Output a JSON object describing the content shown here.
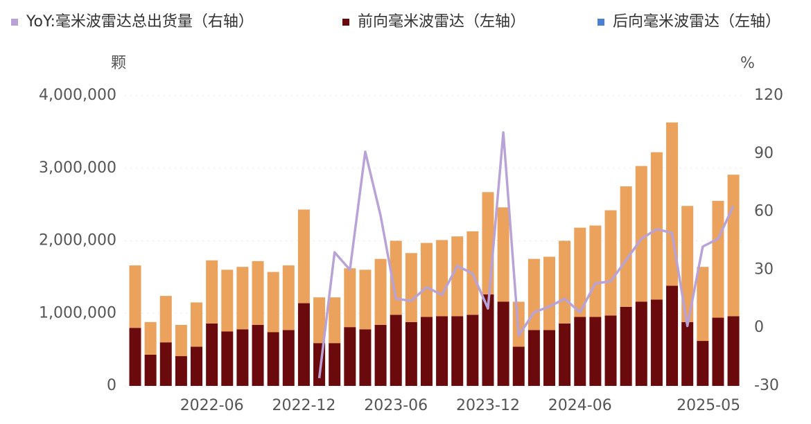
{
  "chart_data": {
    "type": "bar",
    "stacked": true,
    "y_unit": "颗",
    "y2_unit": "%",
    "categories": [
      null,
      null,
      null,
      null,
      null,
      "2022-06",
      null,
      null,
      null,
      null,
      null,
      "2022-12",
      null,
      null,
      null,
      null,
      null,
      "2023-06",
      null,
      null,
      null,
      null,
      null,
      "2023-12",
      null,
      null,
      null,
      null,
      null,
      "2024-06",
      null,
      null,
      null,
      null,
      null,
      null,
      null,
      null,
      null,
      "2025-05"
    ],
    "series": [
      {
        "name": "YoY:毫米波雷达总出货量（右轴）",
        "type": "line",
        "axis": "y2",
        "color": "#b9a3d6",
        "values": [
          null,
          null,
          null,
          null,
          null,
          null,
          null,
          null,
          null,
          null,
          null,
          null,
          -26,
          39,
          30,
          91,
          58,
          15,
          14,
          21,
          17,
          32,
          28,
          10,
          101,
          -4,
          8,
          11,
          15,
          8,
          23,
          24,
          35,
          46,
          51,
          49,
          1,
          42,
          46,
          63
        ]
      },
      {
        "name": "前向毫米波雷达（左轴）",
        "type": "bar",
        "color": "#6b0a0c",
        "values": [
          800000,
          430000,
          600000,
          410000,
          540000,
          860000,
          750000,
          780000,
          840000,
          740000,
          770000,
          1140000,
          590000,
          590000,
          810000,
          780000,
          840000,
          980000,
          880000,
          950000,
          960000,
          960000,
          980000,
          1260000,
          1160000,
          540000,
          770000,
          770000,
          860000,
          950000,
          950000,
          970000,
          1090000,
          1160000,
          1190000,
          1380000,
          880000,
          620000,
          940000,
          960000
        ]
      },
      {
        "name": "后向毫米波雷达（左轴）",
        "type": "bar",
        "color": "#eaa25c",
        "legend_color": "#4a7fd4",
        "values": [
          860000,
          450000,
          640000,
          430000,
          610000,
          870000,
          850000,
          860000,
          880000,
          830000,
          890000,
          1290000,
          630000,
          630000,
          810000,
          820000,
          910000,
          1020000,
          950000,
          1020000,
          1050000,
          1100000,
          1150000,
          1410000,
          1300000,
          620000,
          980000,
          1010000,
          1140000,
          1230000,
          1260000,
          1450000,
          1660000,
          1870000,
          2030000,
          2250000,
          1600000,
          1020000,
          1610000,
          1950000
        ]
      }
    ],
    "ylim": [
      0,
      4000000
    ],
    "yticks": [
      0,
      {
        "value": 1000000,
        "label": "1,000,000"
      },
      {
        "value": 2000000,
        "label": "2,000,000"
      },
      {
        "value": 3000000,
        "label": "3,000,000"
      },
      {
        "value": 4000000,
        "label": "4,000,000"
      }
    ],
    "y2lim": [
      -30,
      120
    ],
    "y2ticks": [
      -30,
      0,
      30,
      60,
      90,
      120
    ],
    "grid": true
  }
}
